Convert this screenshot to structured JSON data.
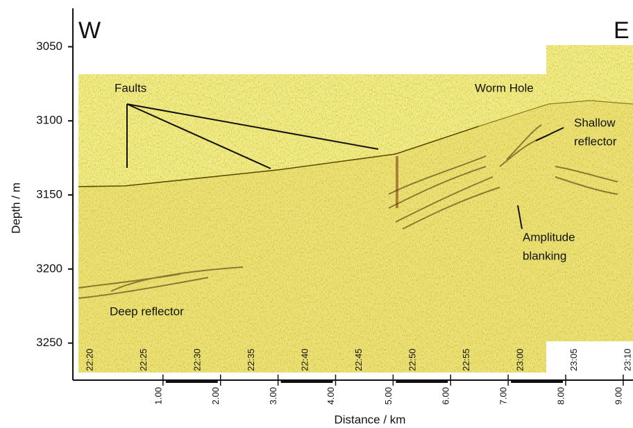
{
  "chart_data": {
    "type": "seismic-profile",
    "x_label": "Distance / km",
    "y_label": "Depth / m",
    "xlim": [
      -0.47,
      9.17
    ],
    "xticks": [
      {
        "value": 1,
        "label": "1.00"
      },
      {
        "value": 2,
        "label": "2.00"
      },
      {
        "value": 3,
        "label": "3.00"
      },
      {
        "value": 4,
        "label": "4.00"
      },
      {
        "value": 5,
        "label": "5.00"
      },
      {
        "value": 6,
        "label": "6.00"
      },
      {
        "value": 7,
        "label": "7.00"
      },
      {
        "value": 8,
        "label": "8.00"
      },
      {
        "value": 9,
        "label": "9.00"
      }
    ],
    "ylim": [
      3275,
      3025
    ],
    "yticks": [
      3050,
      3100,
      3150,
      3200,
      3250
    ],
    "time_labels": [
      "22:20",
      "22:25",
      "22:30",
      "22:35",
      "22:40",
      "22:45",
      "22:50",
      "22:55",
      "23:00",
      "23:05",
      "23:10"
    ],
    "annotations": {
      "west": "W",
      "east": "E",
      "faults": "Faults",
      "worm_hole": "Worm Hole",
      "shallow": [
        "Shallow",
        "reflector"
      ],
      "amplitude": [
        "Amplitude",
        "blanking"
      ],
      "deep": "Deep reflector"
    }
  }
}
